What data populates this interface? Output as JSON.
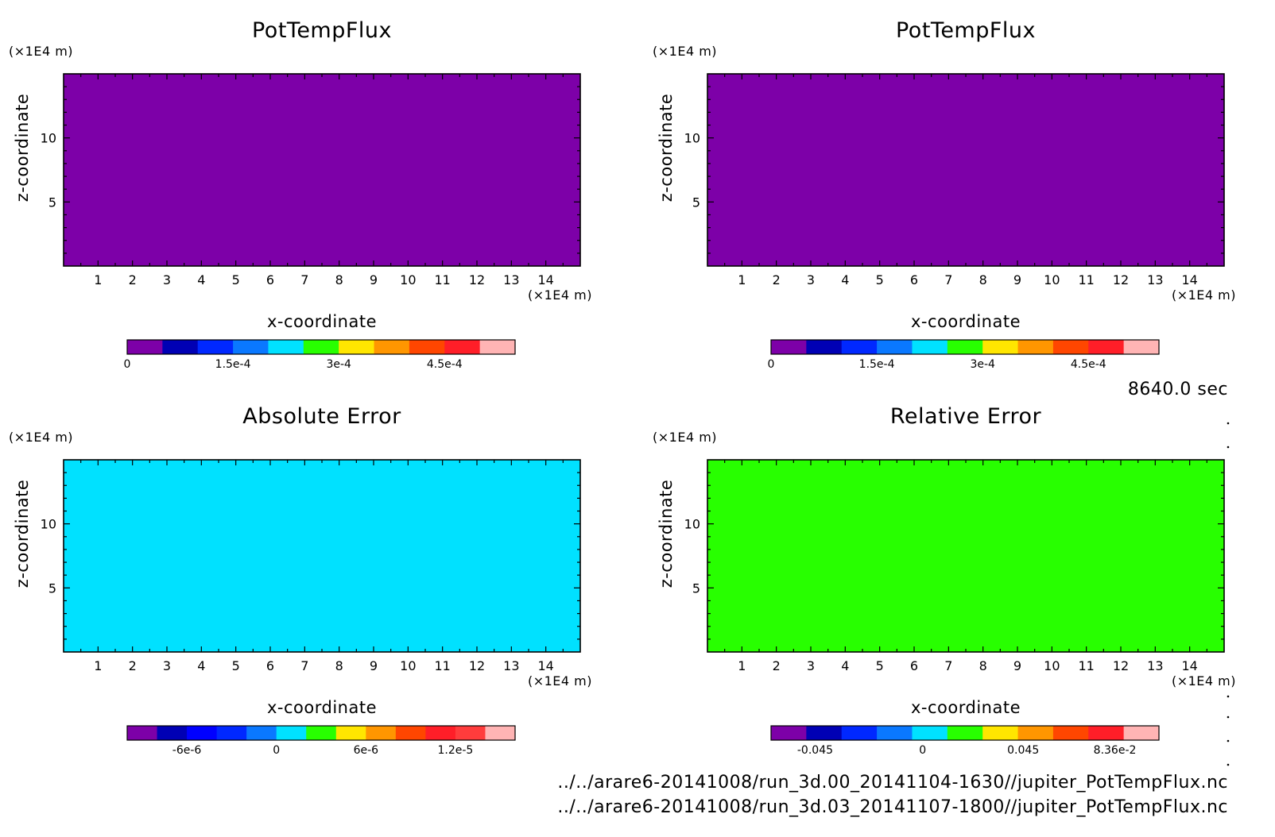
{
  "time_label": "8640.0 sec",
  "file_paths": [
    "../../arare6-20141008/run_3d.00_20141104-1630//jupiter_PotTempFlux.nc",
    "../../arare6-20141008/run_3d.03_20141107-1800//jupiter_PotTempFlux.nc"
  ],
  "chart_data": [
    {
      "type": "heatmap",
      "title": "PotTempFlux",
      "xlabel": "x-coordinate",
      "ylabel": "z-coordinate",
      "x_unit": "(×1E4 m)",
      "y_unit": "(×1E4 m)",
      "xlim": [
        0,
        15
      ],
      "ylim": [
        0,
        15
      ],
      "x_ticks": [
        1,
        2,
        3,
        4,
        5,
        6,
        7,
        8,
        9,
        10,
        11,
        12,
        13,
        14
      ],
      "y_ticks": [
        5,
        10
      ],
      "field_color": "#7d00a8",
      "colorbar": {
        "colors": [
          "#7d00a8",
          "#0000b4",
          "#0028ff",
          "#0a78ff",
          "#00e1ff",
          "#28ff00",
          "#ffe600",
          "#ff9600",
          "#ff4600",
          "#ff1e28",
          "#ffb4b4"
        ],
        "tick_labels": [
          "0",
          "1.5e-4",
          "3e-4",
          "4.5e-4"
        ],
        "tick_positions": [
          0,
          3,
          6,
          9
        ]
      }
    },
    {
      "type": "heatmap",
      "title": "PotTempFlux",
      "xlabel": "x-coordinate",
      "ylabel": "z-coordinate",
      "x_unit": "(×1E4 m)",
      "y_unit": "(×1E4 m)",
      "xlim": [
        0,
        15
      ],
      "ylim": [
        0,
        15
      ],
      "x_ticks": [
        1,
        2,
        3,
        4,
        5,
        6,
        7,
        8,
        9,
        10,
        11,
        12,
        13,
        14
      ],
      "y_ticks": [
        5,
        10
      ],
      "field_color": "#7d00a8",
      "colorbar": {
        "colors": [
          "#7d00a8",
          "#0000b4",
          "#0028ff",
          "#0a78ff",
          "#00e1ff",
          "#28ff00",
          "#ffe600",
          "#ff9600",
          "#ff4600",
          "#ff1e28",
          "#ffb4b4"
        ],
        "tick_labels": [
          "0",
          "1.5e-4",
          "3e-4",
          "4.5e-4"
        ],
        "tick_positions": [
          0,
          3,
          6,
          9
        ]
      }
    },
    {
      "type": "heatmap",
      "title": "Absolute Error",
      "xlabel": "x-coordinate",
      "ylabel": "z-coordinate",
      "x_unit": "(×1E4 m)",
      "y_unit": "(×1E4 m)",
      "xlim": [
        0,
        15
      ],
      "ylim": [
        0,
        15
      ],
      "x_ticks": [
        1,
        2,
        3,
        4,
        5,
        6,
        7,
        8,
        9,
        10,
        11,
        12,
        13,
        14
      ],
      "y_ticks": [
        5,
        10
      ],
      "field_color": "#00e1ff",
      "colorbar": {
        "colors": [
          "#7d00a8",
          "#0000b4",
          "#0000ff",
          "#0028ff",
          "#0a78ff",
          "#00e1ff",
          "#28ff00",
          "#ffe600",
          "#ff9600",
          "#ff4600",
          "#ff1e28",
          "#ff3c3c",
          "#ffb4b4"
        ],
        "tick_labels": [
          "-6e-6",
          "0",
          "6e-6",
          "1.2e-5"
        ],
        "tick_positions": [
          2,
          5,
          8,
          11
        ]
      }
    },
    {
      "type": "heatmap",
      "title": "Relative Error",
      "xlabel": "x-coordinate",
      "ylabel": "z-coordinate",
      "x_unit": "(×1E4 m)",
      "y_unit": "(×1E4 m)",
      "xlim": [
        0,
        15
      ],
      "ylim": [
        0,
        15
      ],
      "x_ticks": [
        1,
        2,
        3,
        4,
        5,
        6,
        7,
        8,
        9,
        10,
        11,
        12,
        13,
        14
      ],
      "y_ticks": [
        5,
        10
      ],
      "field_color": "#28ff00",
      "colorbar": {
        "colors": [
          "#7d00a8",
          "#0000b4",
          "#0028ff",
          "#0a78ff",
          "#00e1ff",
          "#28ff00",
          "#ffe600",
          "#ff9600",
          "#ff4600",
          "#ff1e28",
          "#ffb4b4"
        ],
        "tick_labels": [
          "-0.045",
          "0",
          "0.045",
          "8.36e-2"
        ],
        "tick_positions": [
          1.25,
          4.3,
          7.15,
          9.75
        ]
      }
    }
  ]
}
